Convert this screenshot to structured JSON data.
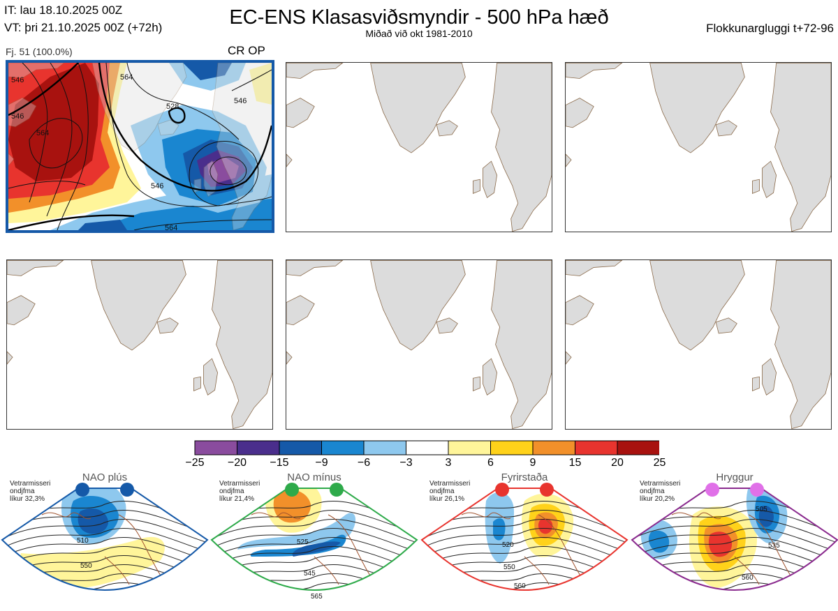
{
  "header": {
    "it_line": "IT: lau 18.10.2025 00Z",
    "vt_line": "VT: þri 21.10.2025 00Z  (+72h)",
    "title": "EC-ENS Klasasviðsmyndir - 500 hPa hæð",
    "subtitle": "Miðað við okt 1981-2010",
    "window": "Flokkunargluggi t+72-96"
  },
  "cluster": {
    "members_label": "Fj. 51 (100.0%)",
    "name": "CR OP",
    "contour_labels": [
      "546",
      "564",
      "528",
      "546",
      "546",
      "564",
      "546",
      "564"
    ]
  },
  "colorbar": {
    "ticks": [
      "−25",
      "−20",
      "−15",
      "−9",
      "−6",
      "−3",
      "3",
      "6",
      "9",
      "15",
      "20",
      "25"
    ],
    "colors": [
      "#8a4c9e",
      "#4a2e8c",
      "#1559a8",
      "#1a86d0",
      "#8ec8ee",
      "#ffffff",
      "#fff59a",
      "#ffd21a",
      "#f2902a",
      "#e8342e",
      "#a8120f"
    ]
  },
  "regimes": [
    {
      "name": "NAO plús",
      "note": [
        "Vetrarmisseri",
        "ondjfma",
        "líkur 32,3%"
      ],
      "labels": [
        "510",
        "550"
      ],
      "color": "#1559a8",
      "dot": "#1559a8"
    },
    {
      "name": "NAO mínus",
      "note": [
        "Vetrarmisseri",
        "ondjfma",
        "líkur 21,4%"
      ],
      "labels": [
        "525",
        "545",
        "565"
      ],
      "color": "#2eaa4a",
      "dot": "#2eaa4a"
    },
    {
      "name": "Fyrirstaða",
      "note": [
        "Vetrarmisseri",
        "ondjfma",
        "líkur 26,1%"
      ],
      "labels": [
        "520",
        "550",
        "560"
      ],
      "color": "#e8342e",
      "dot": "#e8342e"
    },
    {
      "name": "Hryggur",
      "note": [
        "Vetrarmisseri",
        "ondjfma",
        "líkur 20,2%"
      ],
      "labels": [
        "505",
        "535",
        "560"
      ],
      "color": "#8a2a8e",
      "dot": "#e070e8"
    }
  ]
}
